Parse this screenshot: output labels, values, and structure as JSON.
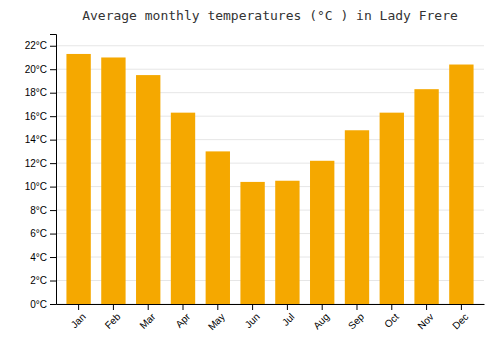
{
  "chart_data": {
    "type": "bar",
    "title": "Average monthly temperatures (°C ) in Lady Frere",
    "categories": [
      "Jan",
      "Feb",
      "Mar",
      "Apr",
      "May",
      "Jun",
      "Jul",
      "Aug",
      "Sep",
      "Oct",
      "Nov",
      "Dec"
    ],
    "values": [
      21.3,
      21.0,
      19.5,
      16.3,
      13.0,
      10.4,
      10.5,
      12.2,
      14.8,
      16.3,
      18.3,
      20.4
    ],
    "color": "#F5A800",
    "ylim": [
      0,
      23
    ],
    "yticks": [
      {
        "value": 0,
        "label": "0°C"
      },
      {
        "value": 2,
        "label": "2°C"
      },
      {
        "value": 4,
        "label": "4°C"
      },
      {
        "value": 6,
        "label": "6°C"
      },
      {
        "value": 8,
        "label": "8°C"
      },
      {
        "value": 10,
        "label": "10°C"
      },
      {
        "value": 12,
        "label": "12°C"
      },
      {
        "value": 14,
        "label": "14°C"
      },
      {
        "value": 16,
        "label": "16°C"
      },
      {
        "value": 18,
        "label": "18°C"
      },
      {
        "value": 20,
        "label": "20°C"
      },
      {
        "value": 22,
        "label": "22°C"
      }
    ],
    "grid": true
  }
}
